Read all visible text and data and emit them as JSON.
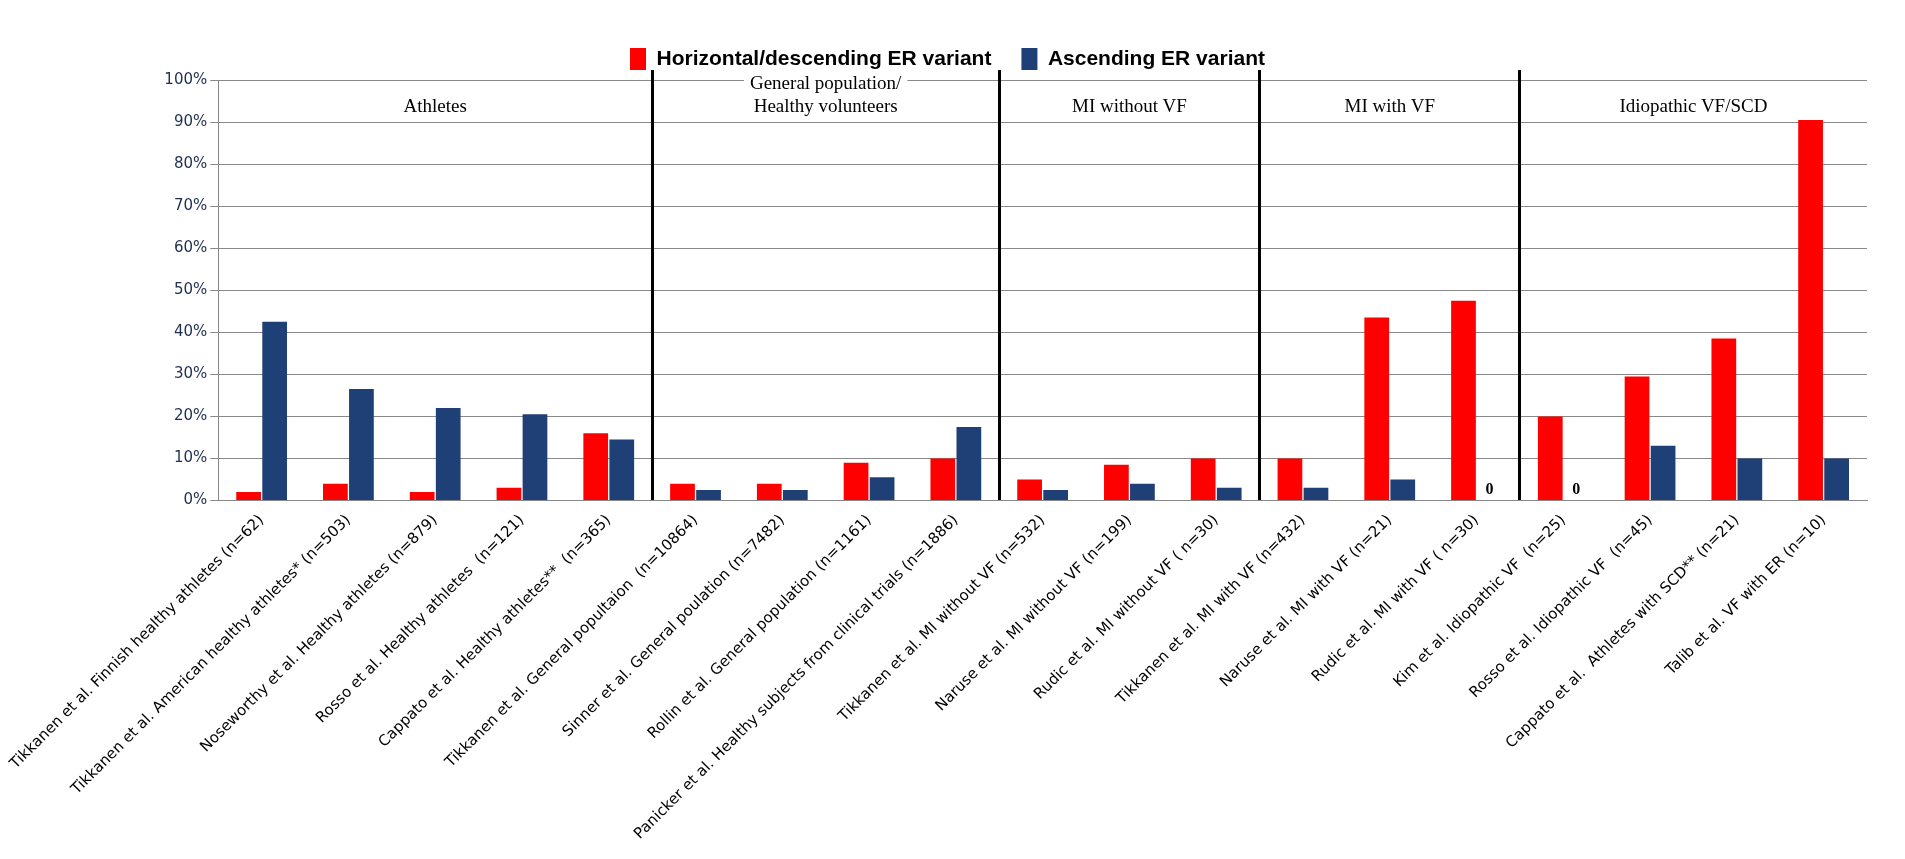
{
  "chart_data": {
    "type": "bar",
    "categories": [
      "Tikkanen et al. Finnish healthy athletes (n=62)",
      "Tikkanen et al. American healthy athletes* (n=503)",
      "Noseworthy et al. Healthy athletes (n=879)",
      "Rosso et al. Healthy athletes  (n=121)",
      "Cappato et al. Healthy athletes**  (n=365)",
      "Tikkanen et al. General popultaion  (n=10864)",
      "Sinner et al. General poulation (n=7482)",
      "Rollin et al. General population (n=1161)",
      "Panicker et al. Healthy subjects from clinical trials (n=1886)",
      "Tikkanen et al. MI without VF (n=532)",
      "Naruse et al. MI without VF (n=199)",
      "Rudic et al. MI without VF ( n=30)",
      "Tikkanen et al. MI with VF (n=432)",
      "Naruse et al. MI with VF (n=21)",
      "Rudic et al. MI with VF ( n=30)",
      "Kim et al. Idiopathic VF  (n=25)",
      "Rosso et al. Idiopathic VF  (n=45)",
      "Cappato et al.  Athletes with SCD** (n=21)",
      "Talib et al. VF with ER (n=10)"
    ],
    "series": [
      {
        "name": "Horizontal/descending ER variant",
        "color": "#ff0000",
        "values": [
          2,
          4,
          2,
          3,
          16,
          4,
          4,
          9,
          10,
          5,
          8.5,
          10,
          10,
          43.5,
          47.5,
          20,
          29.5,
          38.5,
          90.5
        ]
      },
      {
        "name": "Ascending ER variant",
        "color": "#1f3f77",
        "values": [
          42.5,
          26.5,
          22,
          20.5,
          14.5,
          2.5,
          2.5,
          5.5,
          17.5,
          2.5,
          4,
          3,
          3,
          5,
          0,
          0,
          13,
          10,
          10
        ],
        "value_labels": [
          null,
          null,
          null,
          null,
          null,
          null,
          null,
          null,
          null,
          null,
          null,
          null,
          null,
          null,
          "0",
          "0",
          null,
          null,
          null
        ]
      }
    ],
    "ylim": [
      0,
      100
    ],
    "yticks": [
      {
        "value": 0,
        "label": "0%"
      },
      {
        "value": 10,
        "label": "10%"
      },
      {
        "value": 20,
        "label": "20%"
      },
      {
        "value": 30,
        "label": "30%"
      },
      {
        "value": 40,
        "label": "40%"
      },
      {
        "value": 50,
        "label": "50%"
      },
      {
        "value": 60,
        "label": "60%"
      },
      {
        "value": 70,
        "label": "70%"
      },
      {
        "value": 80,
        "label": "80%"
      },
      {
        "value": 90,
        "label": "90%"
      },
      {
        "value": 100,
        "label": "100%"
      }
    ],
    "grid": "y",
    "legend": "top",
    "annotations": [
      "Athletes",
      "General population/\nHealthy volunteers",
      "MI without VF",
      "MI with VF",
      "Idiopathic VF/SCD"
    ]
  }
}
